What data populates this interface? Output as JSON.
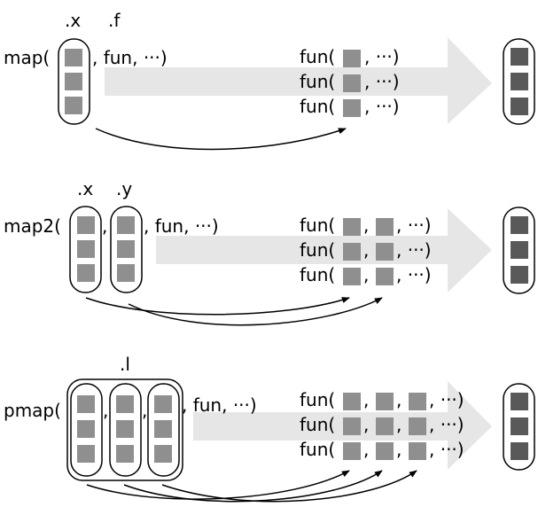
{
  "colors": {
    "arrow_band": "#e6e6e6",
    "input_square": "#8f8f8f",
    "output_square": "#595959",
    "stroke": "#000000"
  },
  "map": {
    "label": "map(",
    "arg_x": ".x",
    "arg_f": ".f",
    "tail": ", fun, ···)",
    "calls": [
      {
        "prefix": "fun(",
        "suffix": ", ···)"
      },
      {
        "prefix": "fun(",
        "suffix": ", ···)"
      },
      {
        "prefix": "fun(",
        "suffix": ", ···)"
      }
    ]
  },
  "map2": {
    "label": "map2(",
    "arg_x": ".x",
    "arg_y": ".y",
    "sep": ",",
    "tail": ", fun, ···)",
    "calls": [
      {
        "prefix": "fun(",
        "sep": ",",
        "suffix": ", ···)"
      },
      {
        "prefix": "fun(",
        "sep": ",",
        "suffix": ", ···)"
      },
      {
        "prefix": "fun(",
        "sep": ",",
        "suffix": ", ···)"
      }
    ]
  },
  "pmap": {
    "label": "pmap(",
    "arg_l": ".l",
    "sep1": ",",
    "sep2": ",",
    "tail": ", fun, ···)",
    "calls": [
      {
        "prefix": "fun(",
        "sep1": ",",
        "sep2": ",",
        "suffix": ", ···)"
      },
      {
        "prefix": "fun(",
        "sep1": ",",
        "sep2": ",",
        "suffix": ", ···)"
      },
      {
        "prefix": "fun(",
        "sep1": ",",
        "sep2": ",",
        "suffix": ", ···)"
      }
    ]
  }
}
